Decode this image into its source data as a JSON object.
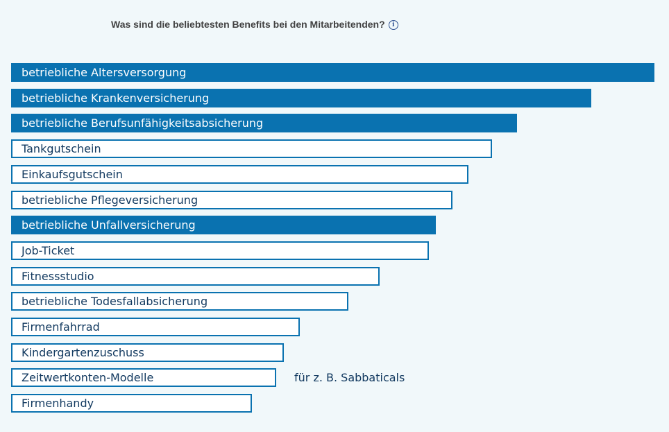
{
  "title": "Was sind die beliebtesten Benefits bei den Mitarbeitenden?",
  "colors": {
    "filled": "#0a72b0",
    "outline_border": "#0a72b0",
    "text_dark": "#133a60",
    "background": "#f1f8fa"
  },
  "chart_data": {
    "type": "bar",
    "orientation": "horizontal",
    "title": "Was sind die beliebtesten Benefits bei den Mitarbeitenden?",
    "xlabel": "",
    "ylabel": "",
    "grid": false,
    "value_unit": "relative",
    "categories": [
      "betriebliche Altersversorgung",
      "betriebliche Krankenversicherung",
      "betriebliche Berufsunfähigkeitsabsicherung",
      "Tankgutschein",
      "Einkaufsgutschein",
      "betriebliche Pflegeversicherung",
      "betriebliche Unfallversicherung",
      "Job-Ticket",
      "Fitnessstudio",
      "betriebliche Todesfallabsicherung",
      "Firmenfahrrad",
      "Kindergartenzuschuss",
      "Zeitwertkonten-Modelle",
      "Firmenhandy"
    ],
    "values": [
      1.0,
      0.902,
      0.786,
      0.748,
      0.711,
      0.686,
      0.66,
      0.649,
      0.573,
      0.524,
      0.449,
      0.424,
      0.412,
      0.374
    ],
    "highlighted": [
      true,
      true,
      true,
      false,
      false,
      false,
      true,
      false,
      false,
      false,
      false,
      false,
      false,
      false
    ],
    "notes": {
      "12": "für z. B. Sabbaticals"
    }
  }
}
